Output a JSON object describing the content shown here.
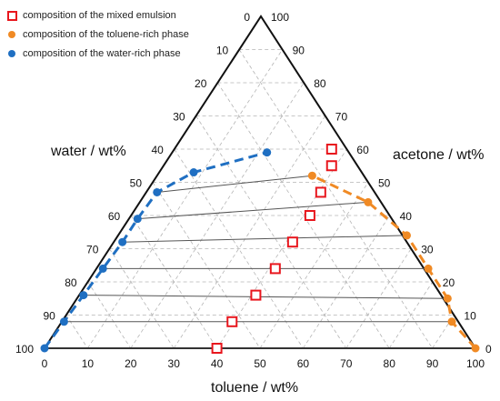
{
  "chart_data": {
    "type": "ternary",
    "axes": {
      "left": {
        "label": "water / wt%",
        "ticks": [
          "0",
          "10",
          "20",
          "30",
          "40",
          "50",
          "60",
          "70",
          "80",
          "90",
          "100"
        ]
      },
      "right": {
        "label": "acetone / wt%",
        "ticks": [
          "0",
          "10",
          "20",
          "30",
          "40",
          "50",
          "60",
          "70",
          "80",
          "90",
          "100"
        ]
      },
      "bottom": {
        "label": "toluene / wt%",
        "ticks": [
          "0",
          "10",
          "20",
          "30",
          "40",
          "50",
          "60",
          "70",
          "80",
          "90",
          "100"
        ]
      }
    },
    "grid": true,
    "legend_position": "top-left",
    "series": [
      {
        "name": "composition of the mixed emulsion",
        "marker": "open-square",
        "color": "#e8161d",
        "points": [
          {
            "toluene": 40,
            "acetone": 0
          },
          {
            "toluene": 39.5,
            "acetone": 8
          },
          {
            "toluene": 41,
            "acetone": 16
          },
          {
            "toluene": 41.5,
            "acetone": 24
          },
          {
            "toluene": 41.5,
            "acetone": 32
          },
          {
            "toluene": 41.5,
            "acetone": 40
          },
          {
            "toluene": 40.5,
            "acetone": 47
          },
          {
            "toluene": 39,
            "acetone": 55
          },
          {
            "toluene": 36.5,
            "acetone": 60
          }
        ]
      },
      {
        "name": "composition of the toluene-rich phase",
        "marker": "filled-circle",
        "color": "#f08a24",
        "points": [
          {
            "toluene": 100,
            "acetone": 0
          },
          {
            "toluene": 90.5,
            "acetone": 8
          },
          {
            "toluene": 86,
            "acetone": 15
          },
          {
            "toluene": 77,
            "acetone": 24
          },
          {
            "toluene": 67,
            "acetone": 34
          },
          {
            "toluene": 53,
            "acetone": 44
          },
          {
            "toluene": 36,
            "acetone": 52
          }
        ]
      },
      {
        "name": "composition of the water-rich phase",
        "marker": "filled-circle",
        "color": "#1f6fc2",
        "points": [
          {
            "toluene": 0,
            "acetone": 0
          },
          {
            "toluene": 0.5,
            "acetone": 8
          },
          {
            "toluene": 1,
            "acetone": 16
          },
          {
            "toluene": 1.5,
            "acetone": 24
          },
          {
            "toluene": 2,
            "acetone": 32
          },
          {
            "toluene": 2,
            "acetone": 39
          },
          {
            "toluene": 2.5,
            "acetone": 47
          },
          {
            "toluene": 8,
            "acetone": 53
          },
          {
            "toluene": 22,
            "acetone": 59
          }
        ]
      }
    ],
    "tie_lines": [
      {
        "from": {
          "toluene": 0,
          "acetone": 0
        },
        "to": {
          "toluene": 100,
          "acetone": 0
        }
      },
      {
        "from": {
          "toluene": 0.5,
          "acetone": 8
        },
        "to": {
          "toluene": 90.5,
          "acetone": 8
        }
      },
      {
        "from": {
          "toluene": 1,
          "acetone": 16
        },
        "to": {
          "toluene": 86,
          "acetone": 15
        }
      },
      {
        "from": {
          "toluene": 1.5,
          "acetone": 24
        },
        "to": {
          "toluene": 77,
          "acetone": 24
        }
      },
      {
        "from": {
          "toluene": 2,
          "acetone": 32
        },
        "to": {
          "toluene": 67,
          "acetone": 34
        }
      },
      {
        "from": {
          "toluene": 2,
          "acetone": 39
        },
        "to": {
          "toluene": 53,
          "acetone": 44
        }
      },
      {
        "from": {
          "toluene": 2.5,
          "acetone": 47
        },
        "to": {
          "toluene": 36,
          "acetone": 52
        }
      }
    ],
    "colors": {
      "mixed": "#e8161d",
      "toluene_rich": "#f08a24",
      "water_rich": "#1f6fc2",
      "tie_line": "#555555",
      "grid": "#b5b5b5",
      "frame": "#111111"
    }
  }
}
